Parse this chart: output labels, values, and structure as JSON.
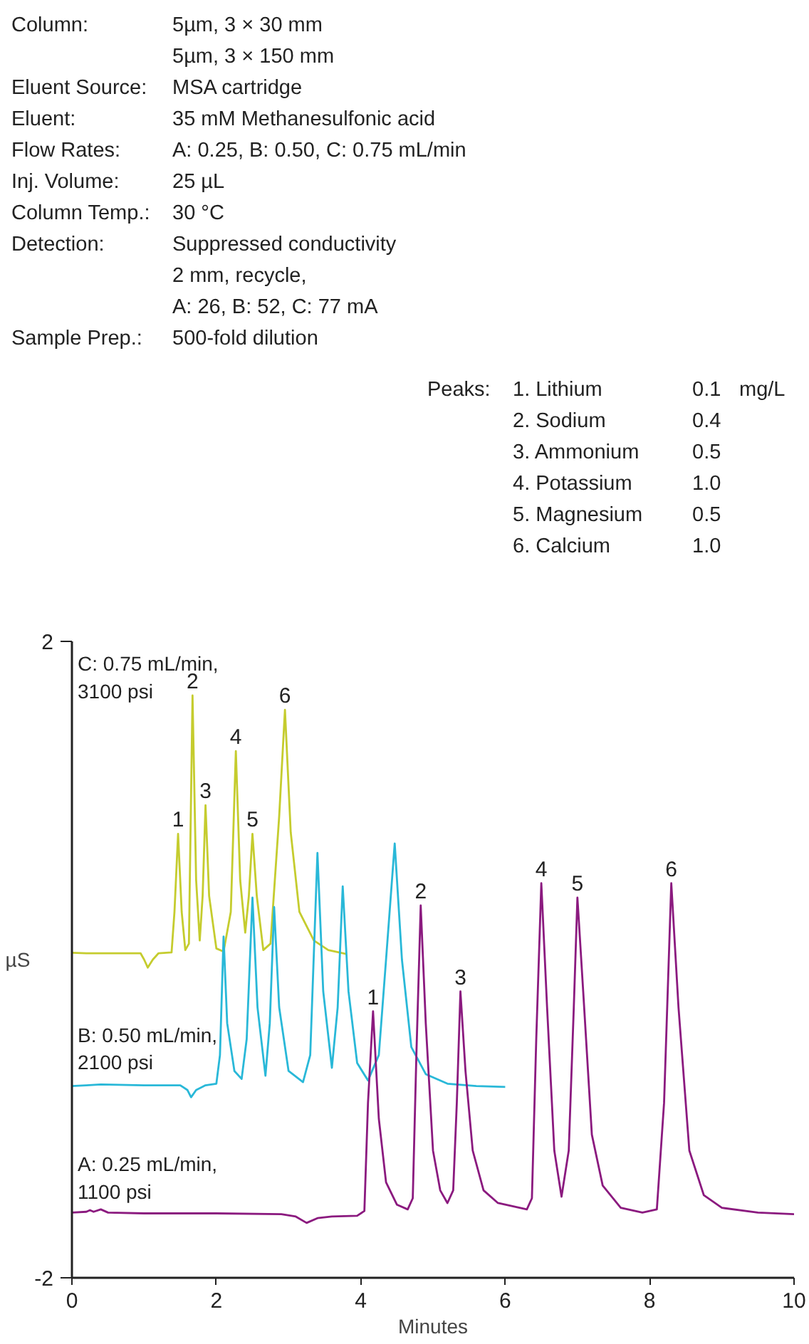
{
  "chart_data": {
    "type": "line",
    "xlabel": "Minutes",
    "ylabel": "µS",
    "xlim": [
      0,
      10
    ],
    "ylim": [
      -2,
      2
    ],
    "xticks": [
      0,
      2,
      4,
      6,
      8,
      10
    ],
    "yticks": [
      -2,
      2
    ],
    "grid": false,
    "legend": false,
    "series": [
      {
        "name": "C: 0.75 mL/min,\n3100 psi",
        "color": "#c5cc2e",
        "x": [
          0,
          0.2,
          0.5,
          0.95,
          1.0,
          1.05,
          1.12,
          1.2,
          1.38,
          1.42,
          1.47,
          1.52,
          1.57,
          1.62,
          1.67,
          1.72,
          1.77,
          1.81,
          1.85,
          1.9,
          2.0,
          2.1,
          2.2,
          2.27,
          2.33,
          2.4,
          2.45,
          2.5,
          2.56,
          2.65,
          2.75,
          2.87,
          2.95,
          3.03,
          3.15,
          3.35,
          3.55,
          3.8
        ],
        "values": [
          0.043,
          0.04,
          0.04,
          0.04,
          0.0,
          -0.05,
          0.0,
          0.04,
          0.045,
          0.3,
          0.79,
          0.3,
          0.06,
          0.1,
          1.66,
          0.5,
          0.12,
          0.4,
          0.97,
          0.4,
          0.07,
          0.05,
          0.3,
          1.31,
          0.5,
          0.17,
          0.4,
          0.79,
          0.4,
          0.06,
          0.1,
          0.9,
          1.57,
          0.8,
          0.3,
          0.12,
          0.06,
          0.035
        ]
      },
      {
        "name": "B: 0.50 mL/min,\n2100 psi",
        "color": "#29b8d8",
        "x": [
          0,
          0.2,
          0.4,
          1.0,
          1.5,
          1.6,
          1.65,
          1.72,
          1.85,
          2.0,
          2.05,
          2.1,
          2.15,
          2.25,
          2.35,
          2.42,
          2.5,
          2.57,
          2.68,
          2.74,
          2.8,
          2.87,
          3.0,
          3.2,
          3.3,
          3.4,
          3.48,
          3.6,
          3.68,
          3.75,
          3.83,
          3.95,
          4.1,
          4.25,
          4.35,
          4.47,
          4.57,
          4.7,
          4.9,
          5.2,
          5.6,
          6.0
        ],
        "values": [
          -0.795,
          -0.79,
          -0.785,
          -0.79,
          -0.79,
          -0.82,
          -0.865,
          -0.82,
          -0.79,
          -0.78,
          -0.6,
          0.145,
          -0.4,
          -0.7,
          -0.75,
          -0.5,
          0.39,
          -0.3,
          -0.73,
          -0.4,
          0.33,
          -0.3,
          -0.7,
          -0.77,
          -0.6,
          0.67,
          -0.2,
          -0.68,
          -0.3,
          0.46,
          -0.2,
          -0.65,
          -0.76,
          -0.6,
          0.0,
          0.73,
          0.0,
          -0.55,
          -0.72,
          -0.78,
          -0.795,
          -0.8
        ]
      },
      {
        "name": "A: 0.25 mL/min,\n1100 psi",
        "color": "#8b1a7f",
        "x": [
          0,
          0.2,
          0.25,
          0.3,
          0.4,
          0.5,
          1.0,
          2.0,
          2.9,
          3.1,
          3.25,
          3.4,
          3.6,
          3.95,
          4.05,
          4.1,
          4.17,
          4.25,
          4.35,
          4.5,
          4.65,
          4.72,
          4.77,
          4.83,
          4.9,
          5.0,
          5.1,
          5.2,
          5.28,
          5.33,
          5.38,
          5.45,
          5.55,
          5.7,
          5.9,
          6.3,
          6.37,
          6.43,
          6.5,
          6.58,
          6.68,
          6.78,
          6.88,
          6.95,
          7.0,
          7.08,
          7.2,
          7.35,
          7.6,
          7.9,
          8.1,
          8.2,
          8.3,
          8.4,
          8.55,
          8.75,
          9.0,
          9.5,
          10
        ],
        "values": [
          -1.59,
          -1.585,
          -1.575,
          -1.585,
          -1.57,
          -1.59,
          -1.595,
          -1.595,
          -1.6,
          -1.615,
          -1.655,
          -1.625,
          -1.615,
          -1.61,
          -1.58,
          -0.9,
          -0.325,
          -1.0,
          -1.4,
          -1.54,
          -1.57,
          -1.5,
          -0.6,
          0.34,
          -0.4,
          -1.2,
          -1.45,
          -1.53,
          -1.45,
          -0.9,
          -0.2,
          -0.7,
          -1.2,
          -1.45,
          -1.53,
          -1.57,
          -1.5,
          -0.5,
          0.48,
          -0.3,
          -1.2,
          -1.49,
          -1.2,
          -0.3,
          0.39,
          -0.2,
          -1.1,
          -1.42,
          -1.56,
          -1.59,
          -1.57,
          -0.9,
          0.48,
          -0.3,
          -1.2,
          -1.48,
          -1.56,
          -1.59,
          -1.6
        ]
      }
    ],
    "annotations": [
      "Column:\t5µm, 3 × 30 mm",
      "\t5µm, 3 × 150 mm",
      "Eluent Source:\tMSA cartridge",
      "Eluent:\t35 mM Methanesulfonic acid",
      "Flow Rates:\tA: 0.25, B: 0.50, C: 0.75 mL/min",
      "Inj. Volume:\t25 µL",
      "Column Temp.:\t30 °C",
      "Detection:\tSuppressed conductivity",
      "\t2 mm, recycle,",
      "\tA: 26, B: 52, C: 77 mA",
      "Sample Prep.:\t500-fold dilution",
      "Peaks:\t1. Lithium\t0.1\tmg/L",
      "\t2. Sodium\t0.4",
      "\t3. Ammonium\t0.5",
      "\t4. Potassium\t1.0",
      "\t5. Magnesium\t0.5",
      "\t6. Calcium\t1.0",
      {
        "text": "1",
        "x": 1.47,
        "y": 0.79
      },
      {
        "text": "2",
        "x": 1.67,
        "y": 1.66
      },
      {
        "text": "3",
        "x": 1.85,
        "y": 0.97
      },
      {
        "text": "4",
        "x": 2.27,
        "y": 1.31
      },
      {
        "text": "5",
        "x": 2.5,
        "y": 0.79
      },
      {
        "text": "6",
        "x": 2.95,
        "y": 1.57
      },
      {
        "text": "1",
        "x": 4.17,
        "y": -0.325
      },
      {
        "text": "2",
        "x": 4.83,
        "y": 0.34
      },
      {
        "text": "3",
        "x": 5.38,
        "y": -0.2
      },
      {
        "text": "4",
        "x": 6.5,
        "y": 0.48
      },
      {
        "text": "5",
        "x": 7.0,
        "y": 0.39
      },
      {
        "text": "6",
        "x": 8.3,
        "y": 0.48
      }
    ]
  }
}
